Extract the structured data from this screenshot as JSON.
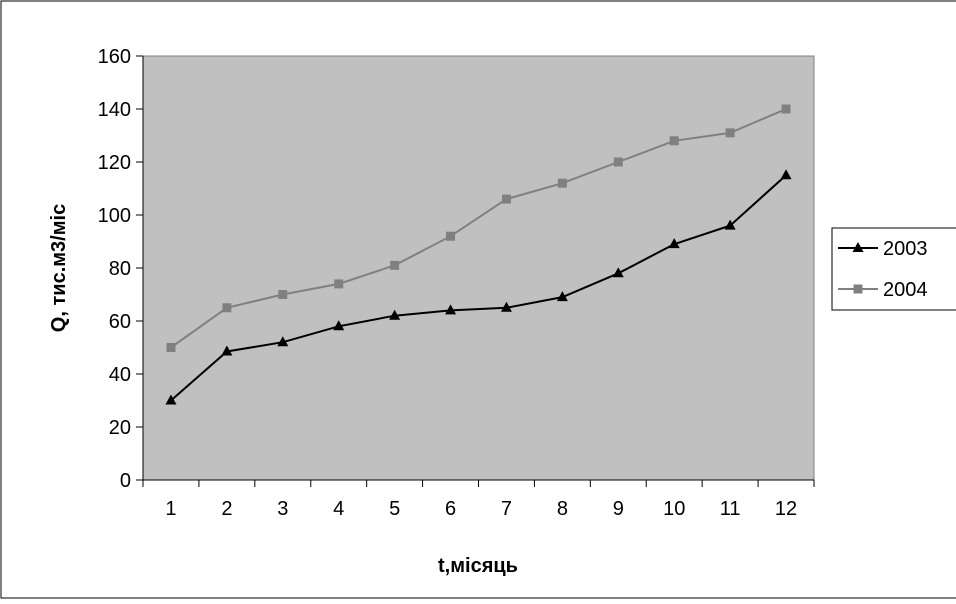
{
  "chart_data": {
    "type": "line",
    "title": "",
    "xlabel": "t,місяць",
    "ylabel": "Q, тис.м3/міс",
    "categories": [
      "1",
      "2",
      "3",
      "4",
      "5",
      "6",
      "7",
      "8",
      "9",
      "10",
      "11",
      "12"
    ],
    "ylim": [
      0,
      160
    ],
    "yticks": [
      "0",
      "20",
      "40",
      "60",
      "80",
      "100",
      "120",
      "140",
      "160"
    ],
    "grid": false,
    "legend_position": "right",
    "plot_background": "#c0c0c0",
    "series": [
      {
        "name": "2003",
        "values": [
          30,
          48.5,
          52,
          58,
          62,
          64,
          65,
          69,
          78,
          89,
          96,
          115
        ],
        "color": "#000000",
        "marker": "triangle"
      },
      {
        "name": "2004",
        "values": [
          50,
          65,
          70,
          74,
          81,
          92,
          106,
          112,
          120,
          128,
          131,
          140
        ],
        "color": "#808080",
        "marker": "square"
      }
    ]
  }
}
